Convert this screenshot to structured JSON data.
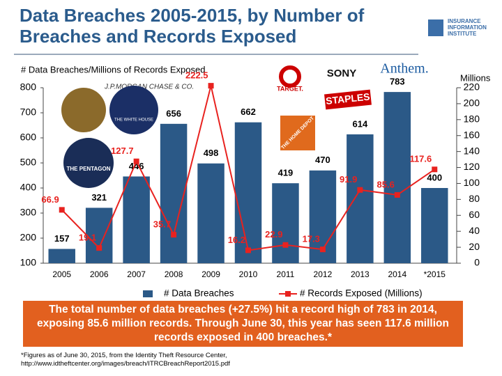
{
  "chart_data": {
    "type": "bar",
    "title_lines": [
      "Data Breaches 2005-2015, by Number of",
      "Breaches and Records Exposed"
    ],
    "subtitle": "# Data Breaches/Millions of Records Exposed",
    "y2_label": "Millions",
    "categories": [
      "2005",
      "2006",
      "2007",
      "2008",
      "2009",
      "2010",
      "2011",
      "2012",
      "2013",
      "2014",
      "*2015"
    ],
    "series": [
      {
        "name": "# Data Breaches",
        "type": "bar",
        "color": "#2b5987",
        "values": [
          157,
          321,
          446,
          656,
          498,
          662,
          419,
          470,
          614,
          783,
          400
        ]
      },
      {
        "name": "# Records Exposed (Millions)",
        "type": "line",
        "axis": "y2",
        "color": "#e8221f",
        "values": [
          66.9,
          19.1,
          127.7,
          35.7,
          222.5,
          16.2,
          22.9,
          17.3,
          91.9,
          85.6,
          117.6
        ]
      }
    ],
    "ylim": [
      100,
      800
    ],
    "yticks": [
      100,
      200,
      300,
      400,
      500,
      600,
      700,
      800
    ],
    "y2lim": [
      0,
      220
    ],
    "y2ticks": [
      0,
      20,
      40,
      60,
      80,
      100,
      120,
      140,
      160,
      180,
      200,
      220
    ]
  },
  "logo_lines": [
    "INSURANCE",
    "INFORMATION",
    "INSTITUTE"
  ],
  "company_logos": [
    "J.P.MORGAN CHASE & CO.",
    "TARGET.",
    "SONY",
    "Anthem.",
    "STAPLES",
    "THE HOME DEPOT",
    "THE PENTAGON",
    "THE WHITE HOUSE"
  ],
  "callout": "The total number of data breaches (+27.5%) hit a record high of 783 in 2014, exposing 85.6 million records. Through June 30, this year has seen 117.6 million records exposed in 400 breaches.*",
  "footnote_lines": [
    "*Figures as of June 30, 2015, from the Identity Theft Resource Center,",
    "http://www.idtheftcenter.org/images/breach/ITRCBreachReport2015.pdf"
  ]
}
